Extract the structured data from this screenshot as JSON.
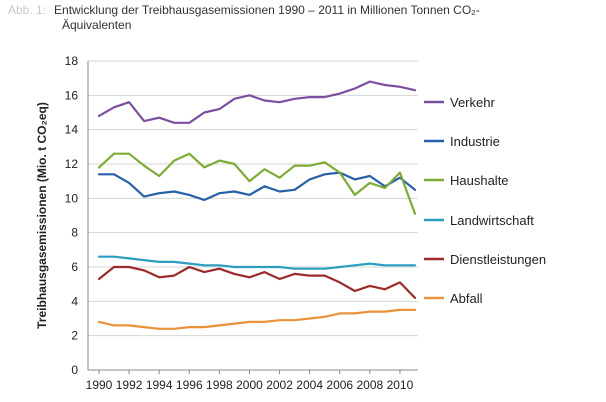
{
  "header": {
    "figure_label": "Abb. 1:",
    "title_line1": "Entwicklung der Treibhausgasemissionen 1990 – 2011 in Millionen Tonnen CO₂-",
    "title_line2": "Äquivalenten"
  },
  "chart_data": {
    "type": "line",
    "title": "Entwicklung der Treibhausgasemissionen 1990 – 2011 in Millionen Tonnen CO₂-Äquivalenten",
    "xlabel": "",
    "ylabel": "Treibhausgasemissionen (Mio. t CO₂eq)",
    "ylim": [
      0,
      18
    ],
    "yticks": [
      0,
      2,
      4,
      6,
      8,
      10,
      12,
      14,
      16,
      18
    ],
    "x": [
      1990,
      1991,
      1992,
      1993,
      1994,
      1995,
      1996,
      1997,
      1998,
      1999,
      2000,
      2001,
      2002,
      2003,
      2004,
      2005,
      2006,
      2007,
      2008,
      2009,
      2010,
      2011
    ],
    "xtick_labels": [
      "1990",
      "1992",
      "1994",
      "1996",
      "1998",
      "2000",
      "2002",
      "2004",
      "2006",
      "2008",
      "2010"
    ],
    "grid": true,
    "legend_position": "right",
    "series": [
      {
        "name": "Verkehr",
        "color": "#7b4fa0",
        "values": [
          14.8,
          15.3,
          15.6,
          14.5,
          14.7,
          14.4,
          14.4,
          15.0,
          15.2,
          15.8,
          16.0,
          15.7,
          15.6,
          15.8,
          15.9,
          15.9,
          16.1,
          16.4,
          16.8,
          16.6,
          16.5,
          16.3
        ]
      },
      {
        "name": "Industrie",
        "color": "#2660a8",
        "values": [
          11.4,
          11.4,
          10.9,
          10.1,
          10.3,
          10.4,
          10.2,
          9.9,
          10.3,
          10.4,
          10.2,
          10.7,
          10.4,
          10.5,
          11.1,
          11.4,
          11.5,
          11.1,
          11.3,
          10.7,
          11.2,
          10.5
        ]
      },
      {
        "name": "Haushalte",
        "color": "#7dab35",
        "values": [
          11.8,
          12.6,
          12.6,
          11.9,
          11.3,
          12.2,
          12.6,
          11.8,
          12.2,
          12.0,
          11.0,
          11.7,
          11.2,
          11.9,
          11.9,
          12.1,
          11.5,
          10.2,
          10.9,
          10.6,
          11.5,
          9.1
        ]
      },
      {
        "name": "Landwirtschaft",
        "color": "#2a9ec0",
        "values": [
          6.6,
          6.6,
          6.5,
          6.4,
          6.3,
          6.3,
          6.2,
          6.1,
          6.1,
          6.0,
          6.0,
          6.0,
          6.0,
          5.9,
          5.9,
          5.9,
          6.0,
          6.1,
          6.2,
          6.1,
          6.1,
          6.1
        ]
      },
      {
        "name": "Dienstleistungen",
        "color": "#9c2a2a",
        "values": [
          5.3,
          6.0,
          6.0,
          5.8,
          5.4,
          5.5,
          6.0,
          5.7,
          5.9,
          5.6,
          5.4,
          5.7,
          5.3,
          5.6,
          5.5,
          5.5,
          5.1,
          4.6,
          4.9,
          4.7,
          5.1,
          4.2
        ]
      },
      {
        "name": "Abfall",
        "color": "#e8923a",
        "values": [
          2.8,
          2.6,
          2.6,
          2.5,
          2.4,
          2.4,
          2.5,
          2.5,
          2.6,
          2.7,
          2.8,
          2.8,
          2.9,
          2.9,
          3.0,
          3.1,
          3.3,
          3.3,
          3.4,
          3.4,
          3.5,
          3.5
        ]
      }
    ]
  }
}
